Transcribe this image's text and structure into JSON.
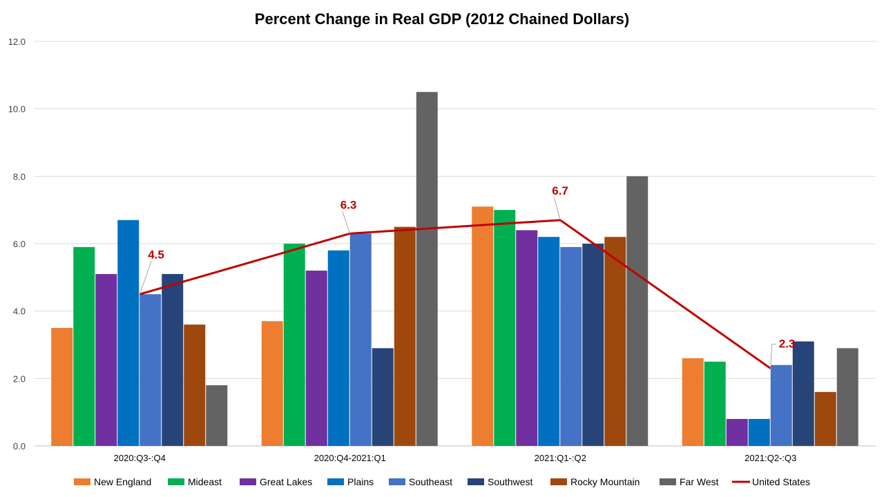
{
  "chart_data": {
    "type": "bar",
    "title": "Percent Change in Real GDP (2012 Chained Dollars)",
    "xlabel": "",
    "ylabel": "",
    "ylim": [
      0,
      12
    ],
    "yticks": [
      "0.0",
      "2.0",
      "4.0",
      "6.0",
      "8.0",
      "10.0",
      "12.0"
    ],
    "grid": true,
    "legend_position": "bottom",
    "categories": [
      "2020:Q3-:Q4",
      "2020:Q4-2021:Q1",
      "2021:Q1-:Q2",
      "2021:Q2-:Q3"
    ],
    "series": [
      {
        "name": "New England",
        "color": "#ed7d31",
        "values": [
          3.5,
          3.7,
          7.1,
          2.6
        ]
      },
      {
        "name": "Mideast",
        "color": "#00b050",
        "values": [
          5.9,
          6.0,
          7.0,
          2.5
        ]
      },
      {
        "name": "Great Lakes",
        "color": "#7030a0",
        "values": [
          5.1,
          5.2,
          6.4,
          0.8
        ]
      },
      {
        "name": "Plains",
        "color": "#0070c0",
        "values": [
          6.7,
          5.8,
          6.2,
          0.8
        ]
      },
      {
        "name": "Southeast",
        "color": "#4472c4",
        "values": [
          4.5,
          6.3,
          5.9,
          2.4
        ]
      },
      {
        "name": "Southwest",
        "color": "#264478",
        "values": [
          5.1,
          2.9,
          6.0,
          3.1
        ]
      },
      {
        "name": "Rocky Mountain",
        "color": "#9e480e",
        "values": [
          3.6,
          6.5,
          6.2,
          1.6
        ]
      },
      {
        "name": "Far West",
        "color": "#636363",
        "values": [
          1.8,
          10.5,
          8.0,
          2.9
        ]
      }
    ],
    "line_series": {
      "name": "United States",
      "color": "#c00000",
      "values": [
        4.5,
        6.3,
        6.7,
        2.3
      ],
      "data_labels": [
        "4.5",
        "6.3",
        "6.7",
        "2.3"
      ]
    }
  }
}
